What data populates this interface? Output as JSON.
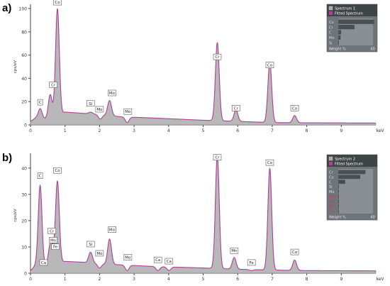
{
  "panels": [
    "a)",
    "b)"
  ],
  "colors": {
    "spectrum_fill": "#b8b8b8",
    "spectrum_line": "#7a7a7a",
    "fit_line": "#b0409a",
    "legend_bg": "#6f7479",
    "legend_title": "#3f4447",
    "label_red": "#e3305a"
  },
  "chart_data": [
    {
      "type": "area",
      "ylabel": "cps/eV",
      "xlabel": "keV",
      "xlim": [
        0,
        10
      ],
      "ylim": [
        0,
        100
      ],
      "x_ticks": [
        "0",
        "1",
        "2",
        "3",
        "4",
        "5",
        "6",
        "7",
        "8",
        "9"
      ],
      "y_ticks": [
        "0",
        "20",
        "40",
        "60",
        "80",
        "100"
      ],
      "baseline": [
        [
          0.0,
          3
        ],
        [
          0.15,
          6
        ],
        [
          0.5,
          5
        ],
        [
          1.0,
          11
        ],
        [
          1.5,
          10
        ],
        [
          2.0,
          9
        ],
        [
          2.6,
          7
        ],
        [
          3.5,
          6
        ],
        [
          5.0,
          4
        ],
        [
          6.0,
          3
        ],
        [
          7.0,
          2
        ],
        [
          8.0,
          1.8
        ],
        [
          10.0,
          1.6
        ]
      ],
      "peaks": [
        {
          "label": "C",
          "x": 0.28,
          "y": 14
        },
        {
          "label": "Cr",
          "x": 0.57,
          "y": 26
        },
        {
          "label": "Co",
          "x": 0.78,
          "y": 100
        },
        {
          "label": "Si",
          "x": 1.74,
          "y": 11
        },
        {
          "label": "Mo",
          "x": 2.02,
          "y": 5
        },
        {
          "label": "Mo",
          "x": 2.29,
          "y": 21
        },
        {
          "label": "Mo",
          "x": 2.8,
          "y": 2
        },
        {
          "label": "Cr",
          "x": 5.41,
          "y": 71
        },
        {
          "label": "Cr",
          "x": 5.95,
          "y": 13
        },
        {
          "label": "Co",
          "x": 6.93,
          "y": 54
        },
        {
          "label": "Co",
          "x": 7.65,
          "y": 8
        }
      ],
      "labels": [
        {
          "text": "Co",
          "x": 0.78,
          "y": 103
        },
        {
          "text": "Cr",
          "x": 0.66,
          "y": 32
        },
        {
          "text": "C",
          "x": 0.28,
          "y": 17
        },
        {
          "text": "Si",
          "x": 1.74,
          "y": 16
        },
        {
          "text": "Mo",
          "x": 2.0,
          "y": 11
        },
        {
          "text": "Mo",
          "x": 2.36,
          "y": 25
        },
        {
          "text": "Mo",
          "x": 2.82,
          "y": 9
        },
        {
          "text": "Cr",
          "x": 5.41,
          "y": 56
        },
        {
          "text": "Cr",
          "x": 5.95,
          "y": 12
        },
        {
          "text": "Co",
          "x": 6.93,
          "y": 49
        },
        {
          "text": "Co",
          "x": 7.65,
          "y": 12
        }
      ],
      "legend": {
        "series": [
          "Spectrum 1",
          "Fitted Spectrum"
        ],
        "elements": [
          {
            "name": "Co",
            "value": 62,
            "color": "gray"
          },
          {
            "name": "Cr",
            "value": 28,
            "color": "gray"
          },
          {
            "name": "C",
            "value": 5,
            "color": "gray"
          },
          {
            "name": "Mo",
            "value": 4,
            "color": "gray"
          },
          {
            "name": "Si",
            "value": 1,
            "color": "gray"
          }
        ],
        "xlabel": "Weight %",
        "xmax": "60"
      }
    },
    {
      "type": "area",
      "ylabel": "cps/eV",
      "xlabel": "keV",
      "xlim": [
        0,
        10
      ],
      "ylim": [
        0,
        44
      ],
      "x_ticks": [
        "0",
        "1",
        "2",
        "3",
        "4",
        "5",
        "6",
        "7",
        "8",
        "9"
      ],
      "y_ticks": [
        "0",
        "10",
        "20",
        "30",
        "40"
      ],
      "baseline": [
        [
          0.0,
          1
        ],
        [
          0.15,
          3
        ],
        [
          0.5,
          3
        ],
        [
          1.0,
          4.5
        ],
        [
          1.5,
          4.2
        ],
        [
          2.0,
          3.6
        ],
        [
          2.6,
          3.2
        ],
        [
          3.5,
          2.6
        ],
        [
          5.0,
          2
        ],
        [
          6.0,
          1.5
        ],
        [
          7.0,
          1.2
        ],
        [
          8.0,
          1
        ],
        [
          10.0,
          0.9
        ]
      ],
      "peaks": [
        {
          "label": "C",
          "x": 0.28,
          "y": 34
        },
        {
          "label": "Ca",
          "x": 0.34,
          "y": 2
        },
        {
          "label": "Cr",
          "x": 0.57,
          "y": 10
        },
        {
          "label": "Mn",
          "x": 0.64,
          "y": 7
        },
        {
          "label": "Co",
          "x": 0.78,
          "y": 35
        },
        {
          "label": "Si",
          "x": 1.74,
          "y": 8
        },
        {
          "label": "Mo",
          "x": 2.0,
          "y": 2
        },
        {
          "label": "Mo",
          "x": 2.29,
          "y": 13
        },
        {
          "label": "Mo",
          "x": 2.8,
          "y": 1
        },
        {
          "label": "Ca",
          "x": 3.69,
          "y": 1
        },
        {
          "label": "Ca",
          "x": 4.01,
          "y": 1
        },
        {
          "label": "Cr",
          "x": 5.41,
          "y": 45
        },
        {
          "label": "Mn",
          "x": 5.9,
          "y": 6
        },
        {
          "label": "Fe",
          "x": 6.4,
          "y": 1
        },
        {
          "label": "Co",
          "x": 6.93,
          "y": 40
        },
        {
          "label": "Co",
          "x": 7.65,
          "y": 5
        }
      ],
      "labels": [
        {
          "text": "C",
          "x": 0.28,
          "y": 36
        },
        {
          "text": "Ca",
          "x": 0.38,
          "y": 3
        },
        {
          "text": "Cr",
          "x": 0.62,
          "y": 15
        },
        {
          "text": "Mn",
          "x": 0.66,
          "y": 11.5
        },
        {
          "text": "Fe",
          "x": 0.72,
          "y": 9
        },
        {
          "text": "Co",
          "x": 0.78,
          "y": 38
        },
        {
          "text": "Si",
          "x": 1.74,
          "y": 10
        },
        {
          "text": "Mo",
          "x": 2.0,
          "y": 6.5
        },
        {
          "text": "Mo",
          "x": 2.36,
          "y": 15.5
        },
        {
          "text": "Mo",
          "x": 2.82,
          "y": 5
        },
        {
          "text": "Ca",
          "x": 3.69,
          "y": 4
        },
        {
          "text": "Ca",
          "x": 4.01,
          "y": 3.5
        },
        {
          "text": "Cr",
          "x": 5.41,
          "y": 43
        },
        {
          "text": "Mn",
          "x": 5.9,
          "y": 7.5
        },
        {
          "text": "Fe",
          "x": 6.4,
          "y": 3
        },
        {
          "text": "Co",
          "x": 6.93,
          "y": 41
        },
        {
          "text": "Co",
          "x": 7.65,
          "y": 7
        }
      ],
      "legend": {
        "series": [
          "Spectrum 2",
          "Fitted Spectrum"
        ],
        "elements": [
          {
            "name": "Cr",
            "value": 47,
            "color": "gray"
          },
          {
            "name": "Co",
            "value": 38,
            "color": "gray"
          },
          {
            "name": "C",
            "value": 12,
            "color": "gray"
          },
          {
            "name": "Si",
            "value": 1,
            "color": "gray"
          },
          {
            "name": "Mo",
            "value": 1,
            "color": "gray"
          },
          {
            "name": "Mn",
            "value": 1,
            "color": "red"
          },
          {
            "name": "Ca",
            "value": 0.5,
            "color": "red"
          },
          {
            "name": "Fe",
            "value": 0.5,
            "color": "red"
          },
          {
            "name": "Ca",
            "value": 0.5,
            "color": "red"
          }
        ],
        "xlabel": "Weight %",
        "xmax": "60"
      }
    }
  ]
}
